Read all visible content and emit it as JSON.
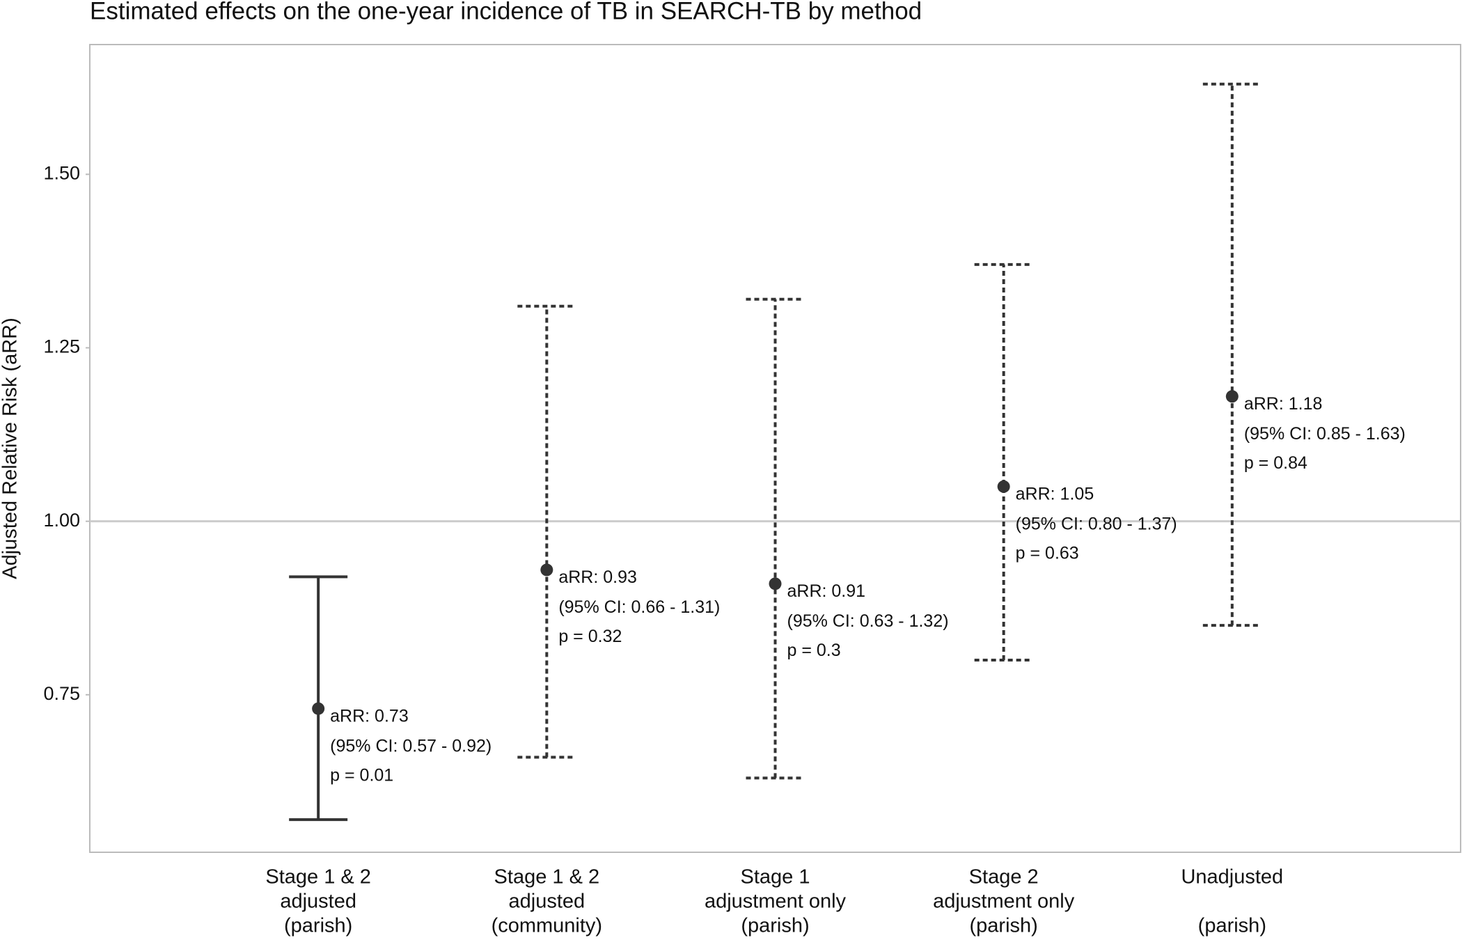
{
  "chart_data": {
    "type": "errorbar",
    "title": "Estimated effects on the one-year incidence of TB in SEARCH-TB by method",
    "y_label": "Adjusted Relative Risk (aRR)",
    "categories": [
      [
        "Stage 1 & 2",
        "adjusted",
        "(parish)"
      ],
      [
        "Stage 1 & 2",
        "adjusted",
        "(community)"
      ],
      [
        "Stage 1",
        "adjustment only",
        "(parish)"
      ],
      [
        "Stage 2",
        "adjustment only",
        "(parish)"
      ],
      [
        "Unadjusted",
        "(parish)"
      ]
    ],
    "values": [
      0.73,
      0.93,
      0.91,
      1.05,
      1.18
    ],
    "value_labels": [
      "aRR: 0.73",
      "aRR: 0.93",
      "aRR: 0.91",
      "aRR: 1.05",
      "aRR: 1.18"
    ],
    "lower": [
      0.57,
      0.66,
      0.63,
      0.8,
      0.85
    ],
    "upper": [
      0.92,
      1.31,
      1.32,
      1.37,
      1.63
    ],
    "ci_labels": [
      "(95% CI: 0.57 - 0.92)",
      "(95% CI: 0.66 - 1.31)",
      "(95% CI: 0.63 - 1.32)",
      "(95% CI: 0.80 - 1.37)",
      "(95% CI: 0.85 - 1.63)"
    ],
    "p_labels": [
      "p = 0.01",
      "p = 0.32",
      "p = 0.3",
      "p = 0.63",
      "p = 0.84"
    ],
    "linestyles": [
      "solid",
      "dashed",
      "dashed",
      "dashed",
      "dashed"
    ],
    "color": "#333333",
    "hline": 1,
    "hline_color": "#cccccc",
    "ylim": [
      0.523,
      1.687
    ],
    "yticks": [
      {
        "value": 0.75,
        "label": "0.75"
      },
      {
        "value": 1,
        "label": "1.00"
      },
      {
        "value": 1.25,
        "label": "1.25"
      },
      {
        "value": 1.5,
        "label": "1.50"
      }
    ]
  }
}
